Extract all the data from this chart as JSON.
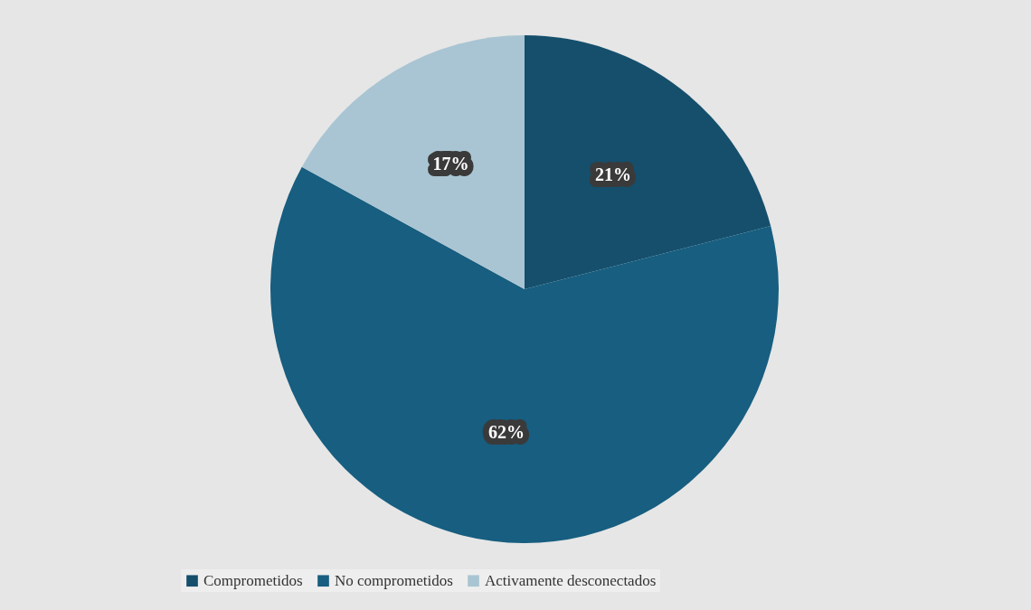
{
  "chart_data": {
    "type": "pie",
    "categories": [
      "Comprometidos",
      "No comprometidos",
      "Activamente desconectados"
    ],
    "values": [
      21,
      62,
      17
    ],
    "colors": [
      "#154f6c",
      "#175e80",
      "#a9c5d3"
    ],
    "value_labels": [
      "21%",
      "62%",
      "17%"
    ],
    "legend": "bottom"
  }
}
